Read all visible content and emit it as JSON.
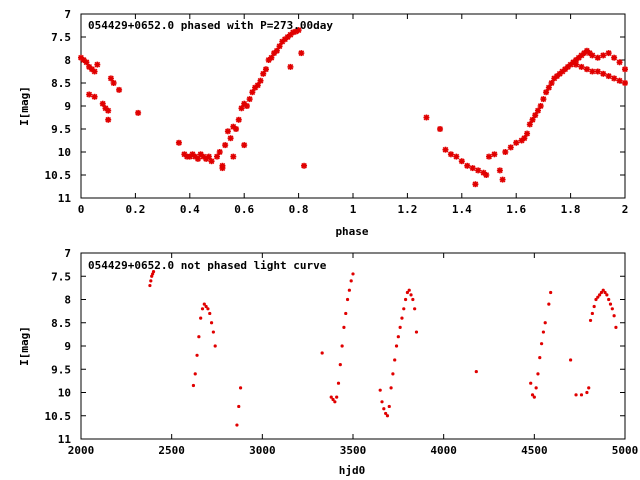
{
  "chart_data": [
    {
      "type": "scatter",
      "title": "054429+0652.0 phased with P=273.00day",
      "xlabel": "phase",
      "ylabel": "I[mag]",
      "xlim": [
        0,
        2
      ],
      "ylim": [
        11,
        7
      ],
      "y_inverted": true,
      "grid": false,
      "marker": "star",
      "color": "#e00000",
      "xticks": [
        "0",
        "0.2",
        "0.4",
        "0.6",
        "0.8",
        "1",
        "1.2",
        "1.4",
        "1.6",
        "1.8",
        "2"
      ],
      "yticks": [
        "7",
        "7.5",
        "8",
        "8.5",
        "9",
        "9.5",
        "10",
        "10.5",
        "11"
      ],
      "x": [
        0.0,
        0.01,
        0.02,
        0.03,
        0.04,
        0.05,
        0.06,
        0.03,
        0.05,
        0.08,
        0.09,
        0.1,
        0.11,
        0.1,
        0.12,
        0.14,
        0.21,
        0.36,
        0.38,
        0.39,
        0.4,
        0.41,
        0.42,
        0.43,
        0.44,
        0.45,
        0.46,
        0.47,
        0.48,
        0.5,
        0.51,
        0.52,
        0.53,
        0.54,
        0.55,
        0.56,
        0.57,
        0.58,
        0.59,
        0.6,
        0.61,
        0.62,
        0.63,
        0.64,
        0.65,
        0.66,
        0.67,
        0.68,
        0.69,
        0.7,
        0.71,
        0.72,
        0.73,
        0.74,
        0.75,
        0.76,
        0.77,
        0.78,
        0.79,
        0.8,
        0.81,
        0.52,
        0.56,
        0.6,
        0.77,
        0.82,
        1.27,
        1.32,
        1.34,
        1.36,
        1.38,
        1.4,
        1.42,
        1.44,
        1.46,
        1.48,
        1.5,
        1.52,
        1.54,
        1.56,
        1.58,
        1.6,
        1.62,
        1.63,
        1.64,
        1.65,
        1.66,
        1.67,
        1.68,
        1.69,
        1.7,
        1.71,
        1.72,
        1.73,
        1.74,
        1.75,
        1.76,
        1.77,
        1.78,
        1.79,
        1.8,
        1.81,
        1.82,
        1.83,
        1.84,
        1.85,
        1.86,
        1.87,
        1.88,
        1.9,
        1.92,
        1.94,
        1.96,
        1.98,
        2.0,
        1.82,
        1.84,
        1.86,
        1.88,
        1.9,
        1.92,
        1.94,
        1.96,
        1.98,
        2.0,
        1.49,
        1.55,
        1.45
      ],
      "y": [
        7.95,
        8.0,
        8.05,
        8.15,
        8.2,
        8.25,
        8.1,
        8.75,
        8.8,
        8.95,
        9.05,
        9.1,
        8.4,
        9.3,
        8.5,
        8.65,
        9.15,
        9.8,
        10.05,
        10.1,
        10.1,
        10.05,
        10.1,
        10.15,
        10.05,
        10.1,
        10.15,
        10.1,
        10.2,
        10.1,
        10.0,
        10.3,
        9.85,
        9.55,
        9.7,
        9.45,
        9.5,
        9.3,
        9.05,
        8.95,
        9.0,
        8.85,
        8.7,
        8.6,
        8.55,
        8.45,
        8.3,
        8.2,
        8.0,
        7.95,
        7.85,
        7.8,
        7.7,
        7.6,
        7.55,
        7.5,
        7.45,
        7.4,
        7.38,
        7.35,
        7.85,
        10.35,
        10.1,
        9.85,
        8.15,
        10.3,
        9.25,
        9.5,
        9.95,
        10.05,
        10.1,
        10.2,
        10.3,
        10.35,
        10.4,
        10.45,
        10.1,
        10.05,
        10.4,
        10.0,
        9.9,
        9.8,
        9.75,
        9.7,
        9.6,
        9.4,
        9.3,
        9.2,
        9.1,
        9.0,
        8.85,
        8.7,
        8.6,
        8.5,
        8.4,
        8.35,
        8.3,
        8.25,
        8.2,
        8.15,
        8.1,
        8.05,
        8.0,
        7.95,
        7.9,
        7.85,
        7.8,
        7.85,
        7.9,
        7.95,
        7.9,
        7.85,
        7.95,
        8.05,
        8.2,
        8.1,
        8.15,
        8.2,
        8.25,
        8.25,
        8.3,
        8.35,
        8.4,
        8.45,
        8.5,
        10.5,
        10.6,
        10.7
      ]
    },
    {
      "type": "scatter",
      "title": "054429+0652.0 not phased light curve",
      "xlabel": "hjd0",
      "ylabel": "I[mag]",
      "xlim": [
        2000,
        5000
      ],
      "ylim": [
        11,
        7
      ],
      "y_inverted": true,
      "grid": false,
      "marker": "dot",
      "color": "#e00000",
      "xticks": [
        "2000",
        "2500",
        "3000",
        "3500",
        "4000",
        "4500",
        "5000"
      ],
      "yticks": [
        "7",
        "7.5",
        "8",
        "8.5",
        "9",
        "9.5",
        "10",
        "10.5",
        "11"
      ],
      "x": [
        2380,
        2385,
        2390,
        2395,
        2400,
        2620,
        2630,
        2640,
        2650,
        2660,
        2670,
        2680,
        2690,
        2700,
        2710,
        2720,
        2730,
        2740,
        2860,
        2870,
        2880,
        3330,
        3380,
        3390,
        3400,
        3410,
        3420,
        3430,
        3440,
        3450,
        3460,
        3470,
        3480,
        3490,
        3500,
        3650,
        3660,
        3670,
        3680,
        3690,
        3700,
        3710,
        3720,
        3730,
        3740,
        3750,
        3760,
        3770,
        3780,
        3790,
        3800,
        3810,
        3820,
        3830,
        3840,
        3850,
        4180,
        4480,
        4490,
        4500,
        4510,
        4520,
        4530,
        4540,
        4550,
        4560,
        4580,
        4590,
        4700,
        4730,
        4760,
        4790,
        4800,
        4810,
        4820,
        4830,
        4840,
        4850,
        4860,
        4870,
        4880,
        4890,
        4900,
        4910,
        4920,
        4930,
        4940,
        4950
      ],
      "y": [
        7.7,
        7.6,
        7.5,
        7.45,
        7.4,
        9.85,
        9.6,
        9.2,
        8.8,
        8.4,
        8.2,
        8.1,
        8.15,
        8.2,
        8.3,
        8.5,
        8.7,
        9.0,
        10.7,
        10.3,
        9.9,
        9.15,
        10.1,
        10.15,
        10.2,
        10.1,
        9.8,
        9.4,
        9.0,
        8.6,
        8.3,
        8.0,
        7.8,
        7.6,
        7.45,
        9.95,
        10.2,
        10.35,
        10.45,
        10.5,
        10.3,
        9.9,
        9.6,
        9.3,
        9.0,
        8.8,
        8.6,
        8.4,
        8.2,
        8.0,
        7.85,
        7.8,
        7.9,
        8.0,
        8.2,
        8.7,
        9.55,
        9.8,
        10.05,
        10.1,
        9.9,
        9.6,
        9.25,
        8.95,
        8.7,
        8.5,
        8.1,
        7.85,
        9.3,
        10.05,
        10.05,
        10.0,
        9.9,
        8.45,
        8.3,
        8.15,
        8.0,
        7.95,
        7.9,
        7.85,
        7.8,
        7.85,
        7.9,
        8.0,
        8.1,
        8.2,
        8.35,
        8.6
      ]
    }
  ]
}
